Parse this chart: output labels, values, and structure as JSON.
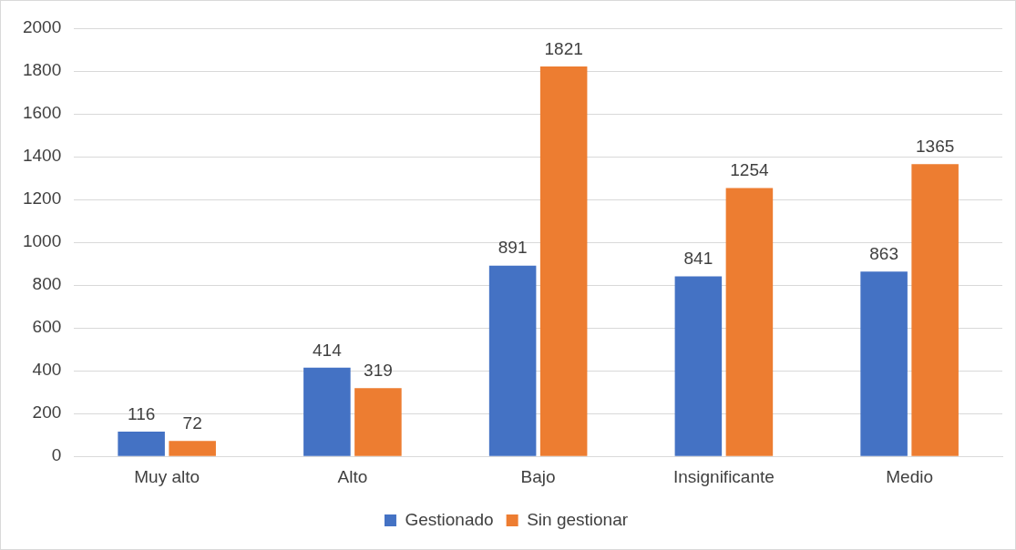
{
  "chart_data": {
    "type": "bar",
    "categories": [
      "Muy alto",
      "Alto",
      "Bajo",
      "Insignificante",
      "Medio"
    ],
    "series": [
      {
        "name": "Gestionado",
        "color": "#4472c4",
        "values": [
          116,
          414,
          891,
          841,
          863
        ]
      },
      {
        "name": "Sin gestionar",
        "color": "#ed7d31",
        "values": [
          72,
          319,
          1821,
          1254,
          1365
        ]
      }
    ],
    "ylim": [
      0,
      2000
    ],
    "yticks": [
      0,
      200,
      400,
      600,
      800,
      1000,
      1200,
      1400,
      1600,
      1800,
      2000
    ],
    "grid": "y",
    "legend": "bottom",
    "data_labels": true
  }
}
